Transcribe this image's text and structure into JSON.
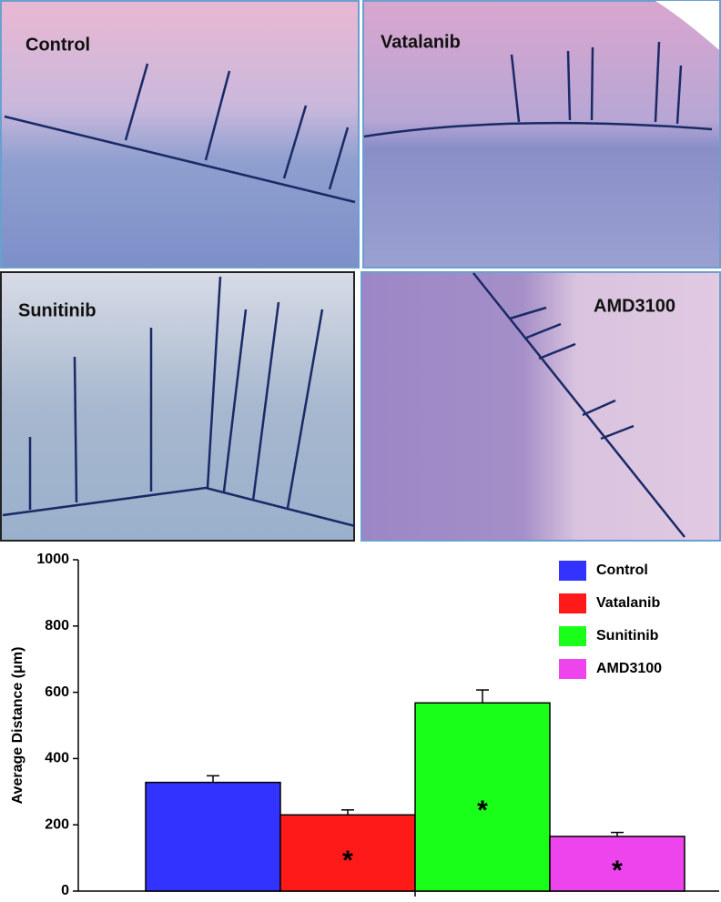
{
  "panels": [
    {
      "label": "Control"
    },
    {
      "label": "Vatalanib"
    },
    {
      "label": "Sunitinib"
    },
    {
      "label": "AMD3100"
    }
  ],
  "chart_data": {
    "type": "bar",
    "ylabel": "Average Distance (μm)",
    "categories": [
      "Control",
      "Vatalanib",
      "Sunitinib",
      "AMD3100"
    ],
    "values": [
      328,
      230,
      568,
      165
    ],
    "errors": [
      20,
      15,
      39,
      12
    ],
    "colors": [
      "#3333ff",
      "#ff1a1a",
      "#1aff1a",
      "#ee44ee"
    ],
    "annotations": [
      {
        "category": "Vatalanib",
        "text": "*"
      },
      {
        "category": "Sunitinib",
        "text": "*"
      },
      {
        "category": "AMD3100",
        "text": "*"
      }
    ],
    "ylim": [
      0,
      1000
    ],
    "yticks": [
      0,
      200,
      400,
      600,
      800,
      1000
    ],
    "legend": "upper right"
  }
}
